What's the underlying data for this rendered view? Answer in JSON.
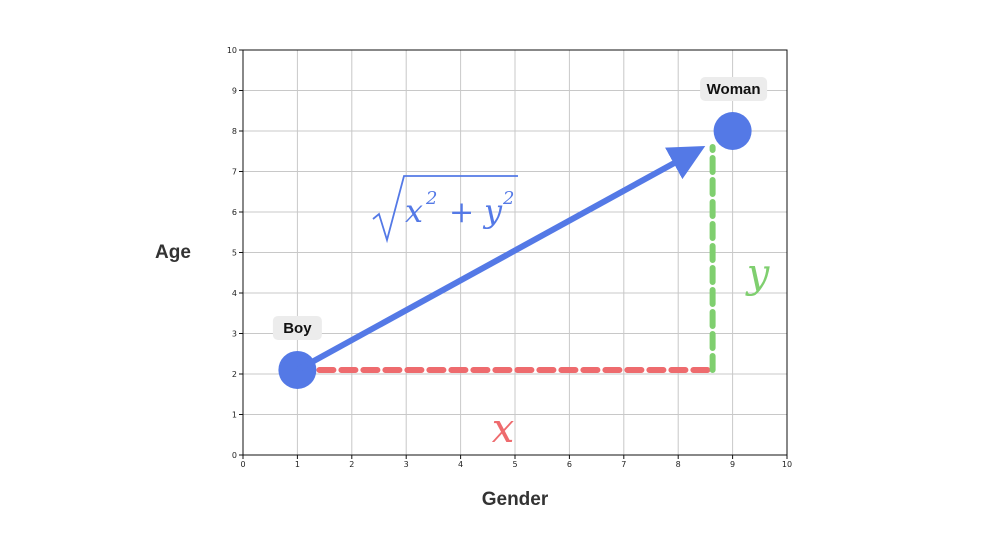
{
  "chart_data": {
    "type": "scatter",
    "xlabel": "Gender",
    "ylabel": "Age",
    "xlim": [
      0,
      10
    ],
    "ylim": [
      0,
      10
    ],
    "xticks": [
      0,
      1,
      2,
      3,
      4,
      5,
      6,
      7,
      8,
      9,
      10
    ],
    "yticks": [
      0,
      1,
      2,
      3,
      4,
      5,
      6,
      7,
      8,
      9,
      10
    ],
    "grid": true,
    "points": [
      {
        "label": "Boy",
        "x": 1,
        "y": 2.1
      },
      {
        "label": "Woman",
        "x": 9,
        "y": 8
      }
    ],
    "annotations": {
      "x_label": "x",
      "y_label": "y",
      "hyp_x": "x",
      "hyp_y": "y",
      "hyp_sup": "2",
      "hyp_plus": "+"
    },
    "colors": {
      "point": "#5479e6",
      "arrow": "#5479e6",
      "x_segment": "#ee6b6e",
      "y_segment": "#7fcf6f",
      "label_bg": "#ececec",
      "grid": "#c8c8c8"
    }
  }
}
